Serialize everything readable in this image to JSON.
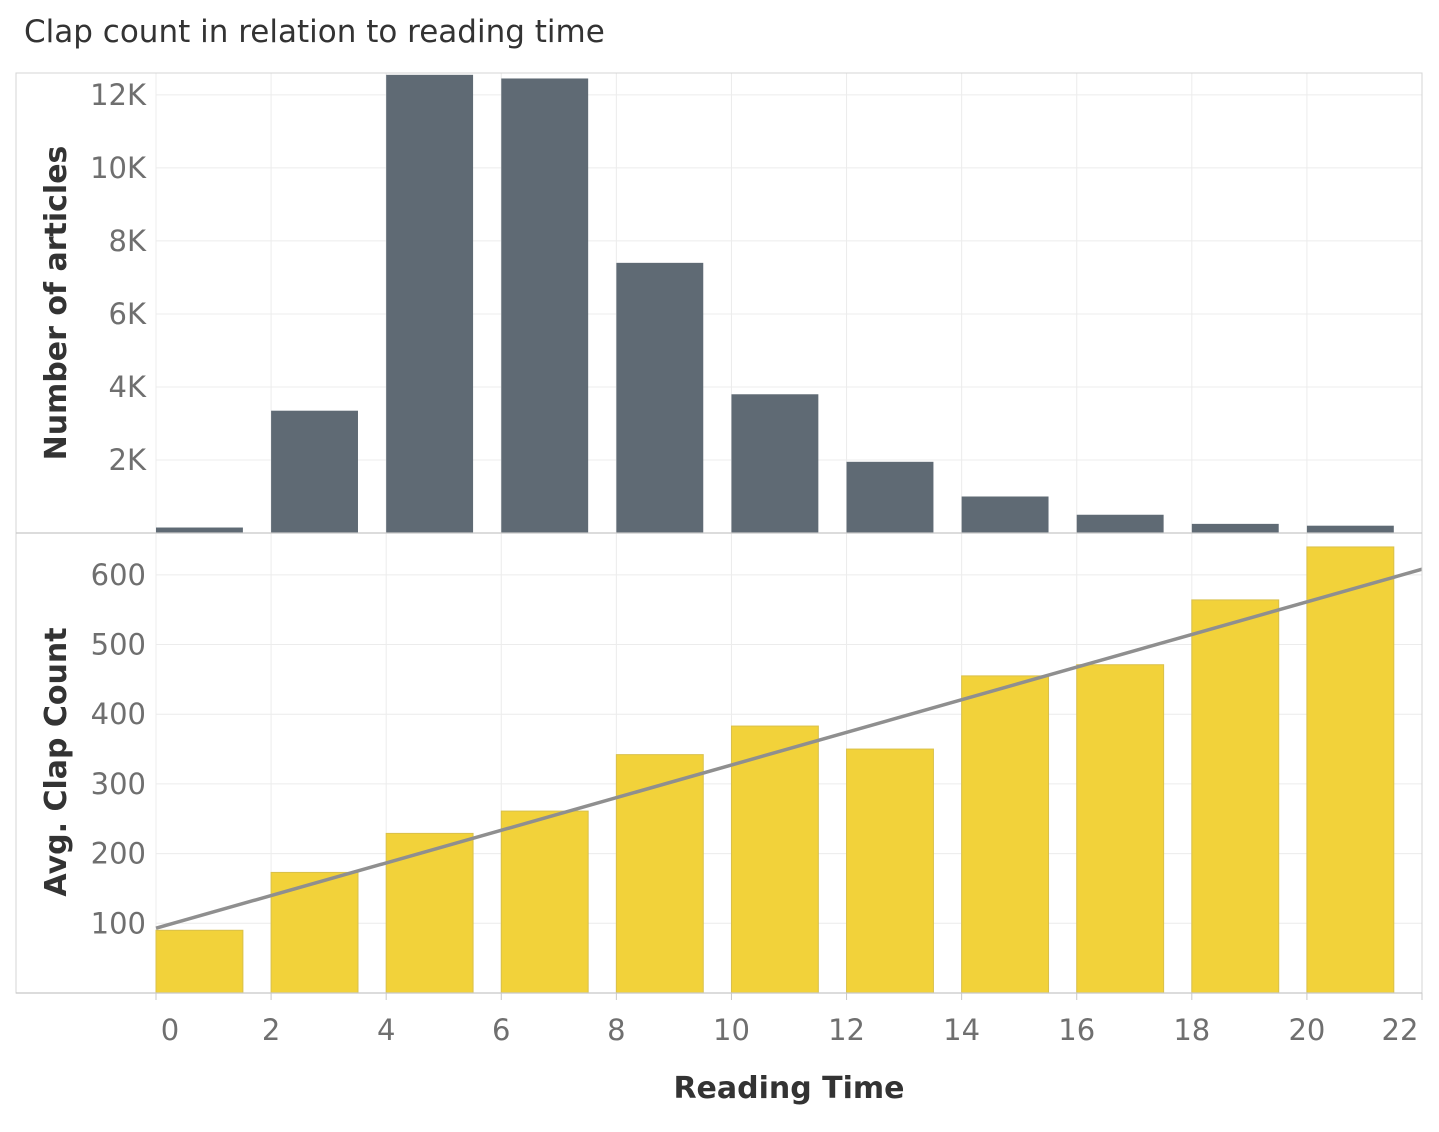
{
  "chart_data": {
    "title": "Clap count in relation to reading time",
    "xlabel": "Reading Time",
    "x_ticks": [
      "0",
      "2",
      "4",
      "6",
      "8",
      "10",
      "12",
      "14",
      "16",
      "18",
      "20",
      "22"
    ],
    "xlim": [
      0,
      22
    ],
    "bin_width": 2,
    "bins": [
      0,
      2,
      4,
      6,
      8,
      10,
      12,
      14,
      16,
      18,
      20
    ],
    "colors": {
      "count_bar": "#5f6a74",
      "clap_bar": "#f2d23a",
      "trend": "#8f8f8f",
      "grid": "#ececec"
    },
    "panels": [
      {
        "type": "bar",
        "ylabel": "Number of articles",
        "ylim": [
          0,
          12600
        ],
        "y_ticks": [
          {
            "value": 2000,
            "label": "2K"
          },
          {
            "value": 4000,
            "label": "4K"
          },
          {
            "value": 6000,
            "label": "6K"
          },
          {
            "value": 8000,
            "label": "8K"
          },
          {
            "value": 10000,
            "label": "10K"
          },
          {
            "value": 12000,
            "label": "12K"
          }
        ],
        "values": [
          150,
          3350,
          12550,
          12450,
          7400,
          3800,
          1950,
          1000,
          500,
          250,
          200
        ]
      },
      {
        "type": "bar",
        "ylabel": "Avg. Clap Count",
        "ylim": [
          0,
          660
        ],
        "y_ticks": [
          {
            "value": 100,
            "label": "100"
          },
          {
            "value": 200,
            "label": "200"
          },
          {
            "value": 300,
            "label": "300"
          },
          {
            "value": 400,
            "label": "400"
          },
          {
            "value": 500,
            "label": "500"
          },
          {
            "value": 600,
            "label": "600"
          }
        ],
        "values": [
          90,
          173,
          229,
          261,
          342,
          383,
          350,
          455,
          471,
          564,
          640
        ],
        "trend_line": {
          "x": [
            0,
            22
          ],
          "y": [
            93,
            608
          ]
        }
      }
    ]
  }
}
